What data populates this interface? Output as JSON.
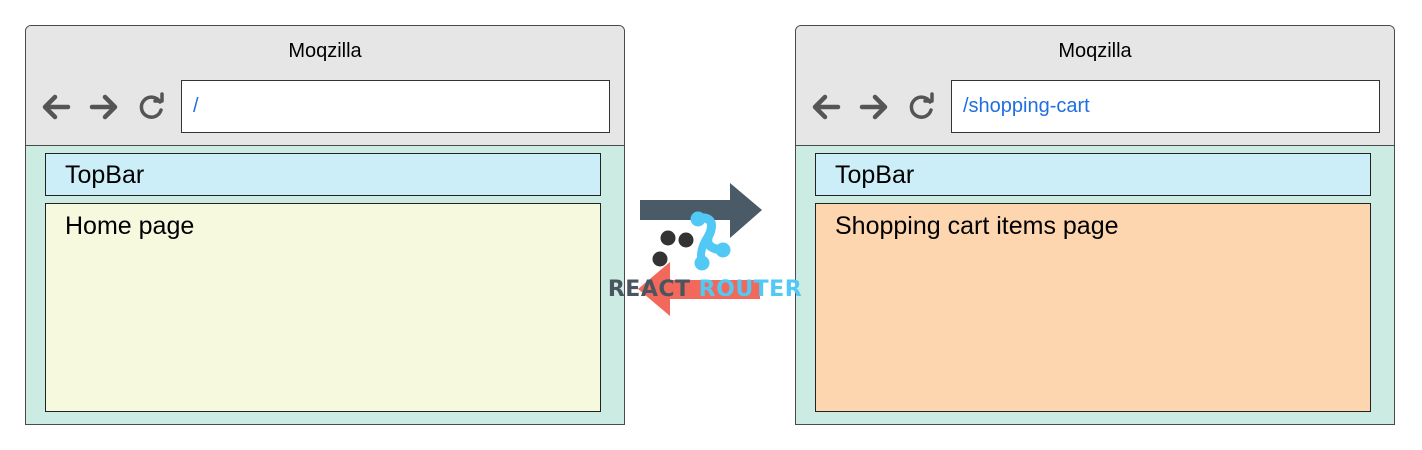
{
  "left_browser": {
    "title": "Moqzilla",
    "url": "/",
    "topbar_label": "TopBar",
    "page_label": "Home page",
    "page_color": "#f6f9de"
  },
  "right_browser": {
    "title": "Moqzilla",
    "url": "/shopping-cart",
    "topbar_label": "TopBar",
    "page_label": "Shopping cart items page",
    "page_color": "#fdd5ae"
  },
  "icons": {
    "back": "arrow-left-icon",
    "forward": "arrow-right-icon",
    "reload": "reload-icon"
  },
  "router_logo": {
    "word1": "REACT",
    "word2": "ROUTER",
    "forward_arrow_color": "#4a5a66",
    "back_arrow_color": "#f2685a",
    "brand_color": "#52c8f5"
  },
  "colors": {
    "chrome": "#e6e6e6",
    "browser_body": "#ccebe2",
    "topbar": "#cceef8",
    "url_text": "#1f6fe0"
  }
}
